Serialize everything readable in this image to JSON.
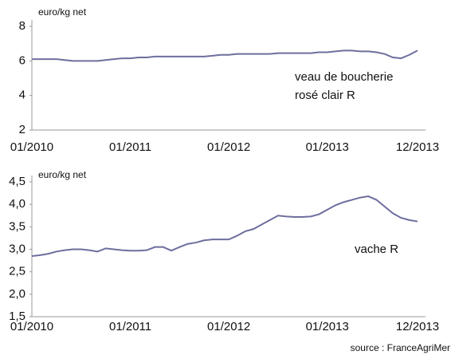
{
  "chart_data": [
    {
      "type": "line",
      "y_label": "euro/kg net",
      "annotation": [
        "veau de boucherie",
        "rosé clair R"
      ],
      "categories": [
        "01/2010",
        null,
        null,
        null,
        null,
        null,
        null,
        null,
        null,
        null,
        null,
        null,
        "01/2011",
        null,
        null,
        null,
        null,
        null,
        null,
        null,
        null,
        null,
        null,
        null,
        "01/2012",
        null,
        null,
        null,
        null,
        null,
        null,
        null,
        null,
        null,
        null,
        null,
        "01/2013",
        null,
        null,
        null,
        null,
        null,
        null,
        null,
        null,
        null,
        null,
        "12/2013"
      ],
      "series": [
        {
          "name": "veau de boucherie rosé clair R",
          "color": "#6e6e9e",
          "values": [
            6.1,
            6.1,
            6.1,
            6.1,
            6.05,
            6.0,
            6.0,
            6.0,
            6.0,
            6.05,
            6.1,
            6.15,
            6.15,
            6.2,
            6.2,
            6.25,
            6.25,
            6.25,
            6.25,
            6.25,
            6.25,
            6.25,
            6.3,
            6.35,
            6.35,
            6.4,
            6.4,
            6.4,
            6.4,
            6.4,
            6.45,
            6.45,
            6.45,
            6.45,
            6.45,
            6.5,
            6.5,
            6.55,
            6.6,
            6.6,
            6.55,
            6.55,
            6.5,
            6.4,
            6.2,
            6.15,
            6.35,
            6.6
          ]
        }
      ],
      "ylim": [
        2,
        8
      ],
      "yticks": [
        2,
        4,
        6,
        8
      ]
    },
    {
      "type": "line",
      "y_label": "euro/kg net",
      "annotation": [
        "vache R"
      ],
      "categories": [
        "01/2010",
        null,
        null,
        null,
        null,
        null,
        null,
        null,
        null,
        null,
        null,
        null,
        "01/2011",
        null,
        null,
        null,
        null,
        null,
        null,
        null,
        null,
        null,
        null,
        null,
        "01/2012",
        null,
        null,
        null,
        null,
        null,
        null,
        null,
        null,
        null,
        null,
        null,
        "01/2013",
        null,
        null,
        null,
        null,
        null,
        null,
        null,
        null,
        null,
        null,
        "12/2013"
      ],
      "series": [
        {
          "name": "vache R",
          "color": "#6e6e9e",
          "values": [
            2.85,
            2.87,
            2.9,
            2.95,
            2.98,
            3.0,
            3.0,
            2.98,
            2.95,
            3.02,
            3.0,
            2.98,
            2.97,
            2.97,
            2.98,
            3.05,
            3.05,
            2.97,
            3.05,
            3.12,
            3.15,
            3.2,
            3.22,
            3.22,
            3.22,
            3.3,
            3.4,
            3.45,
            3.55,
            3.65,
            3.75,
            3.73,
            3.72,
            3.72,
            3.73,
            3.78,
            3.88,
            3.98,
            4.05,
            4.1,
            4.15,
            4.18,
            4.1,
            3.95,
            3.8,
            3.7,
            3.65,
            3.62
          ]
        }
      ],
      "ylim": [
        1.5,
        4.5
      ],
      "yticks": [
        {
          "value": 1.5,
          "label": "1,5"
        },
        {
          "value": 2.0,
          "label": "2,0"
        },
        {
          "value": 2.5,
          "label": "2,5"
        },
        {
          "value": 3.0,
          "label": "3,0"
        },
        {
          "value": 3.5,
          "label": "3,5"
        },
        {
          "value": 4.0,
          "label": "4,0"
        },
        {
          "value": 4.5,
          "label": "4,5"
        }
      ]
    }
  ],
  "source": "source : FranceAgriMer"
}
